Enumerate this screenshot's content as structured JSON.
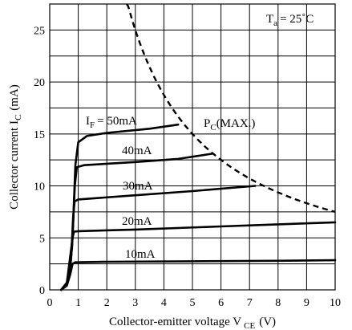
{
  "chart_data": {
    "type": "line",
    "xlabel": "Collector-emitter voltage V",
    "xlabel_sub": "CE",
    "xlabel_unit": "(V)",
    "ylabel": "Collector current I",
    "ylabel_sub": "C",
    "ylabel_unit": "(mA)",
    "xlim": [
      0,
      10
    ],
    "ylim": [
      0,
      27.5
    ],
    "xticks": [
      0,
      1,
      2,
      3,
      4,
      5,
      6,
      7,
      8,
      9,
      10
    ],
    "yticks": [
      0,
      5,
      10,
      15,
      20,
      25
    ],
    "grid": true,
    "series": [
      {
        "label": "10mA",
        "points": [
          [
            0.4,
            0
          ],
          [
            0.6,
            0.4
          ],
          [
            0.72,
            1.5
          ],
          [
            0.8,
            2.5
          ],
          [
            0.9,
            2.65
          ],
          [
            2,
            2.7
          ],
          [
            5,
            2.75
          ],
          [
            8,
            2.8
          ],
          [
            10,
            2.85
          ]
        ]
      },
      {
        "label": "20mA",
        "points": [
          [
            0.4,
            0
          ],
          [
            0.6,
            0.5
          ],
          [
            0.72,
            2
          ],
          [
            0.8,
            5
          ],
          [
            0.85,
            5.6
          ],
          [
            1,
            5.65
          ],
          [
            3,
            5.8
          ],
          [
            6,
            6.1
          ],
          [
            8,
            6.3
          ],
          [
            10,
            6.5
          ]
        ]
      },
      {
        "label": "30mA",
        "points": [
          [
            0.4,
            0
          ],
          [
            0.6,
            0.6
          ],
          [
            0.75,
            3
          ],
          [
            0.82,
            7
          ],
          [
            0.87,
            8.5
          ],
          [
            1,
            8.7
          ],
          [
            3,
            9.1
          ],
          [
            5,
            9.5
          ],
          [
            7.2,
            10
          ]
        ]
      },
      {
        "label": "40mA",
        "points": [
          [
            0.4,
            0
          ],
          [
            0.6,
            0.6
          ],
          [
            0.78,
            4
          ],
          [
            0.88,
            10
          ],
          [
            0.95,
            11.8
          ],
          [
            1.2,
            12
          ],
          [
            3,
            12.3
          ],
          [
            4.5,
            12.6
          ],
          [
            5.7,
            13.1
          ]
        ]
      },
      {
        "label": "50mA",
        "points": [
          [
            0.4,
            0
          ],
          [
            0.6,
            0.7
          ],
          [
            0.8,
            5
          ],
          [
            0.9,
            12
          ],
          [
            1.0,
            14.2
          ],
          [
            1.3,
            14.8
          ],
          [
            2,
            15.1
          ],
          [
            3.5,
            15.5
          ],
          [
            4.5,
            15.9
          ]
        ]
      }
    ],
    "pc_max": {
      "label": "(MAX.)",
      "power_mw": 75,
      "x_range": [
        2.7,
        10
      ]
    },
    "annotations": {
      "if_prefix": "I",
      "if_sub": "F",
      "if_value": "= 50mA",
      "pc_prefix": "P",
      "pc_sub": "C",
      "ta_prefix": "T",
      "ta_sub": "a",
      "ta_value": "= 25˚C"
    }
  }
}
